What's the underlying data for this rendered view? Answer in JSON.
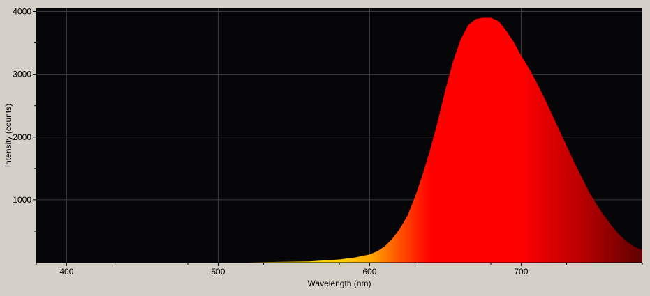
{
  "chart_data": {
    "type": "area",
    "xlabel": "Wavelength (nm)",
    "ylabel": "Intensity (counts)",
    "xlim": [
      380,
      780
    ],
    "ylim": [
      0,
      4050
    ],
    "x_ticks": [
      400,
      500,
      600,
      700
    ],
    "y_ticks": [
      1000,
      2000,
      3000,
      4000
    ],
    "x_tick_labels": [
      "400",
      "500",
      "600",
      "700"
    ],
    "y_tick_labels": [
      "1000",
      "2000",
      "3000",
      "4000"
    ],
    "grid": true,
    "legend": "none",
    "series": [
      {
        "x": [
          520,
          560,
          580,
          590,
          600,
          605,
          610,
          615,
          620,
          625,
          630,
          635,
          640,
          645,
          650,
          655,
          660,
          665,
          670,
          675,
          680,
          685,
          690,
          695,
          700,
          705,
          710,
          715,
          720,
          725,
          730,
          735,
          740,
          745,
          750,
          755,
          760,
          765,
          770,
          775,
          780
        ],
        "y": [
          5,
          20,
          50,
          80,
          130,
          180,
          260,
          380,
          540,
          750,
          1050,
          1400,
          1800,
          2250,
          2750,
          3200,
          3550,
          3780,
          3880,
          3900,
          3900,
          3850,
          3700,
          3520,
          3300,
          3100,
          2880,
          2640,
          2380,
          2120,
          1860,
          1600,
          1360,
          1120,
          920,
          740,
          580,
          440,
          330,
          250,
          200
        ]
      }
    ]
  },
  "colors": {
    "background": "#d4d0c8",
    "plot_background": "#060508",
    "grid": "#3c3c3c",
    "spectrum_stops": [
      {
        "nm": 580,
        "color": "#ffd000"
      },
      {
        "nm": 600,
        "color": "#ffaa00"
      },
      {
        "nm": 620,
        "color": "#ff5000"
      },
      {
        "nm": 640,
        "color": "#ff0000"
      },
      {
        "nm": 700,
        "color": "#ff0000"
      },
      {
        "nm": 740,
        "color": "#b80000"
      },
      {
        "nm": 780,
        "color": "#600000"
      }
    ]
  }
}
